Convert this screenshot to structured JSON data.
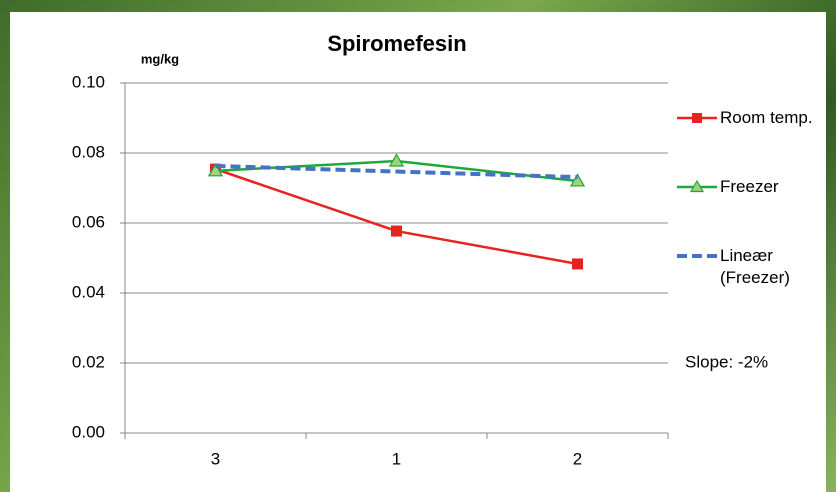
{
  "chart_data": {
    "type": "line",
    "title": "Spiromefesin",
    "y_unit": "mg/kg",
    "categories": [
      "3",
      "1",
      "2"
    ],
    "series": [
      {
        "name": "Room temp.",
        "color": "#e8221f",
        "marker": "square",
        "line_style": "solid",
        "values": [
          0.0754,
          0.0577,
          0.0483
        ]
      },
      {
        "name": "Freezer",
        "color": "#1fa83a",
        "marker": "triangle",
        "marker_fill": "#9fd27e",
        "line_style": "solid",
        "values": [
          0.0749,
          0.0777,
          0.072
        ]
      },
      {
        "name": "Lineær (Freezer)",
        "color": "#4472c4",
        "marker": "none",
        "line_style": "dashed",
        "values": [
          0.0763,
          0.0747,
          0.0731
        ]
      }
    ],
    "ylim": [
      0,
      0.1
    ],
    "yticks": [
      {
        "value": 0,
        "label": "0.00"
      },
      {
        "value": 0.02,
        "label": "0.02"
      },
      {
        "value": 0.04,
        "label": "0.04"
      },
      {
        "value": 0.06,
        "label": "0.06"
      },
      {
        "value": 0.08,
        "label": "0.08"
      },
      {
        "value": 0.1,
        "label": "0.10"
      }
    ],
    "grid": true,
    "legend": "right",
    "annotation": "Slope:   -2%"
  }
}
